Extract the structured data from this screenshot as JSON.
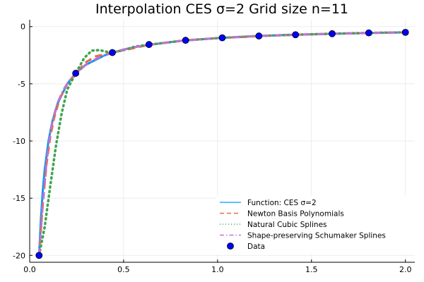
{
  "chart_data": {
    "type": "line",
    "title": "Interpolation CES σ=2 Grid size n=11",
    "xlabel": "",
    "ylabel": "",
    "xlim": [
      0.0,
      2.05
    ],
    "ylim": [
      -20.6,
      0.6
    ],
    "xticks": [
      0.0,
      0.5,
      1.0,
      1.5,
      2.0
    ],
    "xtick_labels": [
      "0.0",
      "0.5",
      "1.0",
      "1.5",
      "2.0"
    ],
    "yticks": [
      -20,
      -15,
      -10,
      -5,
      0
    ],
    "ytick_labels": [
      "-20",
      "-15",
      "-10",
      "-5",
      "0"
    ],
    "grid": true,
    "legend_position": "bottom-right",
    "series": [
      {
        "name": "Function: CES σ=2",
        "color": "#009AFA",
        "style": "solid",
        "x": [
          0.05,
          0.06,
          0.07,
          0.08,
          0.1,
          0.12,
          0.15,
          0.2,
          0.25,
          0.3,
          0.4,
          0.5,
          0.6,
          0.8,
          1.0,
          1.2,
          1.4,
          1.6,
          1.8,
          2.0
        ],
        "y": [
          -20.0,
          -16.7,
          -14.3,
          -12.5,
          -10.0,
          -8.33,
          -6.67,
          -5.0,
          -4.0,
          -3.33,
          -2.5,
          -2.0,
          -1.67,
          -1.25,
          -1.0,
          -0.83,
          -0.71,
          -0.63,
          -0.56,
          -0.5
        ]
      },
      {
        "name": "Newton Basis Polynomials",
        "color": "#E36F47",
        "style": "dashed",
        "x": [
          0.05,
          0.07,
          0.09,
          0.11,
          0.13,
          0.16,
          0.2,
          0.245,
          0.3,
          0.35,
          0.44,
          0.55,
          0.64,
          0.75,
          0.83,
          0.95,
          1.025,
          1.15,
          1.22,
          1.35,
          1.415,
          1.55,
          1.61,
          1.75,
          1.805,
          1.9,
          2.0
        ],
        "y": [
          -20.0,
          -15.5,
          -12.0,
          -9.6,
          -8.0,
          -6.3,
          -5.0,
          -4.08,
          -3.1,
          -2.6,
          -2.27,
          -1.9,
          -1.57,
          -1.36,
          -1.2,
          -1.06,
          -0.98,
          -0.9,
          -0.82,
          -0.76,
          -0.71,
          -0.66,
          -0.62,
          -0.58,
          -0.55,
          -0.52,
          -0.5
        ]
      },
      {
        "name": "Natural Cubic Splines",
        "color": "#3EA44E",
        "style": "dotted",
        "x": [
          0.05,
          0.08,
          0.11,
          0.14,
          0.17,
          0.2,
          0.245,
          0.29,
          0.33,
          0.37,
          0.41,
          0.44,
          0.5,
          0.56,
          0.64,
          0.83,
          1.025,
          1.22,
          1.415,
          1.61,
          1.805,
          2.0
        ],
        "y": [
          -20.0,
          -17.5,
          -13.9,
          -10.4,
          -7.6,
          -5.5,
          -4.08,
          -2.75,
          -2.1,
          -2.05,
          -2.2,
          -2.27,
          -2.05,
          -1.75,
          -1.57,
          -1.2,
          -0.98,
          -0.82,
          -0.71,
          -0.62,
          -0.55,
          -0.5
        ]
      },
      {
        "name": "Shape-preserving Schumaker Splines",
        "color": "#C271D2",
        "style": "dashdot",
        "x": [
          0.05,
          0.07,
          0.09,
          0.11,
          0.13,
          0.15,
          0.18,
          0.21,
          0.245,
          0.3,
          0.36,
          0.44,
          0.54,
          0.64,
          0.83,
          1.025,
          1.22,
          1.415,
          1.61,
          1.805,
          2.0
        ],
        "y": [
          -20.0,
          -15.5,
          -11.8,
          -9.2,
          -7.7,
          -6.6,
          -5.5,
          -4.75,
          -4.08,
          -3.3,
          -2.75,
          -2.27,
          -1.85,
          -1.57,
          -1.2,
          -0.98,
          -0.82,
          -0.71,
          -0.62,
          -0.55,
          -0.5
        ]
      }
    ],
    "data_points": {
      "name": "Data",
      "color": "#0000FF",
      "x": [
        0.05,
        0.245,
        0.44,
        0.635,
        0.83,
        1.025,
        1.22,
        1.415,
        1.61,
        1.805,
        2.0
      ],
      "y": [
        -20.0,
        -4.08,
        -2.27,
        -1.57,
        -1.2,
        -0.98,
        -0.82,
        -0.71,
        -0.62,
        -0.55,
        -0.5
      ]
    }
  }
}
